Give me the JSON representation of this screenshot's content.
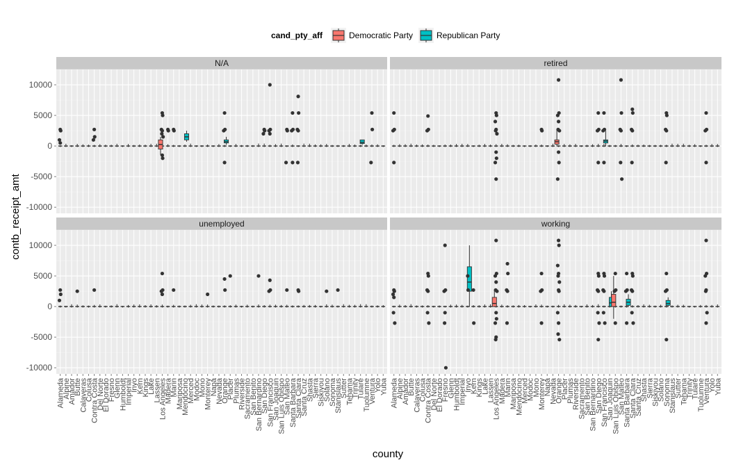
{
  "chart_data": {
    "type": "boxplot",
    "x_label": "county",
    "y_label": "contb_receipt_amt",
    "y_ticks": [
      -10000,
      -5000,
      0,
      5000,
      10000
    ],
    "ylim": [
      -11000,
      12500
    ],
    "legend": {
      "title": "cand_pty_aff",
      "position": "top",
      "entries": [
        {
          "label": "Democratic Party",
          "color": "#F8766D"
        },
        {
          "label": "Republican Party",
          "color": "#00BFC4"
        }
      ]
    },
    "colors": {
      "panel_bg": "#EBEBEB",
      "grid": "#FFFFFF",
      "strip_bg": "#C8C8C8",
      "points": "#333333",
      "dem": "#F8766D",
      "rep": "#00BFC4"
    },
    "panels": [
      {
        "label": "N/A",
        "counties": [
          "Alameda",
          "Alpine",
          "Amador",
          "Butte",
          "Calaveras",
          "Colusa",
          "Contra Costa",
          "Del Norte",
          "El Dorado",
          "Fresno",
          "Glenn",
          "Humboldt",
          "Imperial",
          "Inyo",
          "Kern",
          "Kings",
          "Lake",
          "Lassen",
          "Los Angeles",
          "Madera",
          "Marin",
          "Mariposa",
          "Mendocino",
          "Merced",
          "Modoc",
          "Mono",
          "Monterey",
          "Napa",
          "Nevada",
          "Orange",
          "Placer",
          "Plumas",
          "Riverside",
          "Sacramento",
          "San Benito",
          "San Bernardino",
          "San Diego",
          "San Francisco",
          "San Joaquin",
          "San Luis Obispo",
          "San Mateo",
          "Santa Barbara",
          "Santa Clara",
          "Santa Cruz",
          "Shasta",
          "Sierra",
          "Siskiyou",
          "Solano",
          "Sonoma",
          "Stanislaus",
          "Sutter",
          "Tehama",
          "Trinity",
          "Tulare",
          "Tuolumne",
          "Ventura",
          "Yolo",
          "Yuba"
        ],
        "outliers": [
          {
            "county": "Alameda",
            "values": [
              2700,
              2500,
              1000,
              500
            ]
          },
          {
            "county": "Contra Costa",
            "values": [
              2700,
              1500,
              1000
            ]
          },
          {
            "county": "Los Angeles",
            "values": [
              5400,
              5000,
              2700,
              2500,
              2000,
              1500,
              -1500,
              -2000
            ]
          },
          {
            "county": "Madera",
            "values": [
              2700,
              2500
            ]
          },
          {
            "county": "Marin",
            "values": [
              2700,
              2500
            ]
          },
          {
            "county": "Orange",
            "values": [
              5400,
              2700,
              2500,
              -2700
            ]
          },
          {
            "county": "San Diego",
            "values": [
              2700,
              2500,
              2000
            ]
          },
          {
            "county": "San Francisco",
            "values": [
              10000,
              2700,
              2500,
              2000
            ]
          },
          {
            "county": "San Mateo",
            "values": [
              2700,
              2500,
              -2700
            ]
          },
          {
            "county": "Santa Barbara",
            "values": [
              5400,
              2700,
              2500,
              -2700
            ]
          },
          {
            "county": "Santa Clara",
            "values": [
              8100,
              5400,
              2700,
              2500,
              -2700
            ]
          },
          {
            "county": "Ventura",
            "values": [
              5400,
              2700,
              -2700
            ]
          }
        ],
        "boxes": [
          {
            "county": "Los Angeles",
            "party": "Democratic Party",
            "min": -1500,
            "q1": -500,
            "median": 250,
            "q3": 1000,
            "max": 1500
          },
          {
            "county": "Mendocino",
            "party": "Republican Party",
            "min": 700,
            "q1": 1000,
            "median": 1500,
            "q3": 2000,
            "max": 2500
          },
          {
            "county": "Orange",
            "party": "Republican Party",
            "min": 200,
            "q1": 500,
            "median": 700,
            "q3": 1000,
            "max": 1500
          },
          {
            "county": "Tulare",
            "party": "Republican Party",
            "min": 200,
            "q1": 400,
            "median": 600,
            "q3": 1000,
            "max": 1000
          }
        ]
      },
      {
        "label": "retired",
        "counties": [
          "Alameda",
          "Alpine",
          "Amador",
          "Butte",
          "Calaveras",
          "Colusa",
          "Contra Costa",
          "Del Norte",
          "El Dorado",
          "Fresno",
          "Glenn",
          "Humboldt",
          "Imperial",
          "Inyo",
          "Kern",
          "Kings",
          "Lake",
          "Lassen",
          "Los Angeles",
          "Madera",
          "Marin",
          "Mariposa",
          "Mendocino",
          "Merced",
          "Modoc",
          "Mono",
          "Monterey",
          "Napa",
          "Nevada",
          "Orange",
          "Placer",
          "Plumas",
          "Riverside",
          "Sacramento",
          "San Benito",
          "San Bernardino",
          "San Diego",
          "San Francisco",
          "San Joaquin",
          "San Luis Obispo",
          "San Mateo",
          "Santa Barbara",
          "Santa Clara",
          "Santa Cruz",
          "Shasta",
          "Sierra",
          "Siskiyou",
          "Solano",
          "Sonoma",
          "Stanislaus",
          "Sutter",
          "Tehama",
          "Trinity",
          "Tulare",
          "Tuolumne",
          "Ventura",
          "Yolo",
          "Yuba"
        ],
        "outliers": [
          {
            "county": "Alameda",
            "values": [
              5400,
              2700,
              2500,
              -2700
            ]
          },
          {
            "county": "Contra Costa",
            "values": [
              4900,
              2700,
              2500
            ]
          },
          {
            "county": "Los Angeles",
            "values": [
              5400,
              5000,
              4000,
              2700,
              2500,
              2000,
              -1000,
              -2000,
              -2700,
              -5400
            ]
          },
          {
            "county": "Monterey",
            "values": [
              2700,
              2500
            ]
          },
          {
            "county": "Orange",
            "values": [
              10800,
              5400,
              5000,
              4000,
              2700,
              2500,
              -1000,
              -2700,
              -5400
            ]
          },
          {
            "county": "San Diego",
            "values": [
              5400,
              2700,
              2500,
              -2700
            ]
          },
          {
            "county": "San Francisco",
            "values": [
              5400,
              2700,
              2500,
              -2700
            ]
          },
          {
            "county": "San Mateo",
            "values": [
              10800,
              5400,
              2700,
              2500,
              -2700,
              -5400
            ]
          },
          {
            "county": "Santa Clara",
            "values": [
              6000,
              5400,
              2700,
              2500,
              -2700
            ]
          },
          {
            "county": "Sonoma",
            "values": [
              5400,
              5000,
              2700,
              2500,
              -2700
            ]
          },
          {
            "county": "Ventura",
            "values": [
              5400,
              2700,
              2500,
              -2700
            ]
          }
        ],
        "boxes": [
          {
            "county": "Orange",
            "party": "Democratic Party",
            "min": 0,
            "q1": 300,
            "median": 700,
            "q3": 1000,
            "max": 2700
          },
          {
            "county": "San Francisco",
            "party": "Republican Party",
            "min": 0,
            "q1": 500,
            "median": 800,
            "q3": 1000,
            "max": 2500
          }
        ]
      },
      {
        "label": "unemployed",
        "counties": [
          "Alameda",
          "Alpine",
          "Amador",
          "Butte",
          "Calaveras",
          "Colusa",
          "Contra Costa",
          "Del Norte",
          "El Dorado",
          "Fresno",
          "Glenn",
          "Humboldt",
          "Imperial",
          "Inyo",
          "Kern",
          "Kings",
          "Lake",
          "Lassen",
          "Los Angeles",
          "Madera",
          "Marin",
          "Mariposa",
          "Mendocino",
          "Merced",
          "Modoc",
          "Mono",
          "Monterey",
          "Napa",
          "Nevada",
          "Orange",
          "Placer",
          "Plumas",
          "Riverside",
          "Sacramento",
          "San Benito",
          "San Bernardino",
          "San Diego",
          "San Francisco",
          "San Joaquin",
          "San Luis Obispo",
          "San Mateo",
          "Santa Barbara",
          "Santa Clara",
          "Santa Cruz",
          "Shasta",
          "Sierra",
          "Siskiyou",
          "Solano",
          "Sonoma",
          "Stanislaus",
          "Sutter",
          "Tehama",
          "Trinity",
          "Tulare",
          "Tuolumne",
          "Ventura",
          "Yolo",
          "Yuba"
        ],
        "outliers": [
          {
            "county": "Alameda",
            "values": [
              2700,
              2000,
              1000
            ]
          },
          {
            "county": "Butte",
            "values": [
              2500
            ]
          },
          {
            "county": "Contra Costa",
            "values": [
              2700
            ]
          },
          {
            "county": "Los Angeles",
            "values": [
              5400,
              2700,
              2500,
              2000
            ]
          },
          {
            "county": "Marin",
            "values": [
              2700
            ]
          },
          {
            "county": "Monterey",
            "values": [
              2000
            ]
          },
          {
            "county": "Orange",
            "values": [
              4500,
              2700
            ]
          },
          {
            "county": "Placer",
            "values": [
              5000
            ]
          },
          {
            "county": "San Bernardino",
            "values": [
              5000
            ]
          },
          {
            "county": "San Francisco",
            "values": [
              4300,
              2700,
              2500
            ]
          },
          {
            "county": "San Mateo",
            "values": [
              2700
            ]
          },
          {
            "county": "Santa Clara",
            "values": [
              2700,
              2500
            ]
          },
          {
            "county": "Solano",
            "values": [
              2500
            ]
          },
          {
            "county": "Stanislaus",
            "values": [
              2700
            ]
          }
        ],
        "boxes": []
      },
      {
        "label": "working",
        "counties": [
          "Alameda",
          "Alpine",
          "Amador",
          "Butte",
          "Calaveras",
          "Colusa",
          "Contra Costa",
          "Del Norte",
          "El Dorado",
          "Fresno",
          "Glenn",
          "Humboldt",
          "Imperial",
          "Inyo",
          "Kern",
          "Kings",
          "Lake",
          "Lassen",
          "Los Angeles",
          "Madera",
          "Marin",
          "Mariposa",
          "Mendocino",
          "Merced",
          "Modoc",
          "Mono",
          "Monterey",
          "Napa",
          "Nevada",
          "Orange",
          "Placer",
          "Plumas",
          "Riverside",
          "Sacramento",
          "San Benito",
          "San Bernardino",
          "San Diego",
          "San Francisco",
          "San Joaquin",
          "San Luis Obispo",
          "San Mateo",
          "Santa Barbara",
          "Santa Clara",
          "Santa Cruz",
          "Shasta",
          "Sierra",
          "Siskiyou",
          "Solano",
          "Sonoma",
          "Stanislaus",
          "Sutter",
          "Tehama",
          "Trinity",
          "Tulare",
          "Tuolumne",
          "Ventura",
          "Yolo",
          "Yuba"
        ],
        "outliers": [
          {
            "county": "Alameda",
            "values": [
              2700,
              2500,
              2000,
              1500,
              -1000,
              -2700
            ]
          },
          {
            "county": "Contra Costa",
            "values": [
              5400,
              5000,
              2700,
              2500,
              -1000,
              -2700
            ]
          },
          {
            "county": "Fresno",
            "values": [
              10000,
              2700,
              2500,
              -1000,
              -2700,
              -10000
            ]
          },
          {
            "county": "Inyo",
            "values": [
              5000,
              2700
            ]
          },
          {
            "county": "Kern",
            "values": [
              2700,
              -2700
            ]
          },
          {
            "county": "Los Angeles",
            "values": [
              10800,
              5400,
              5000,
              4000,
              2700,
              2500,
              -1000,
              -2000,
              -2700,
              -5000,
              -5400
            ]
          },
          {
            "county": "Marin",
            "values": [
              7000,
              5400,
              2700,
              2500,
              -2700
            ]
          },
          {
            "county": "Monterey",
            "values": [
              5400,
              2700,
              2500,
              -2700
            ]
          },
          {
            "county": "Orange",
            "values": [
              10800,
              10000,
              6700,
              5400,
              5000,
              4000,
              2700,
              2500,
              -1000,
              -2700,
              -4500,
              -5400
            ]
          },
          {
            "county": "San Diego",
            "values": [
              5400,
              5000,
              2700,
              2500,
              -1000,
              -2700,
              -5400
            ]
          },
          {
            "county": "San Francisco",
            "values": [
              5400,
              5000,
              2700,
              2500,
              -1000,
              -2700
            ]
          },
          {
            "county": "San Luis Obispo",
            "values": [
              5400,
              2700,
              2500,
              -2700
            ]
          },
          {
            "county": "Santa Barbara",
            "values": [
              5400,
              2700,
              2500,
              -2700
            ]
          },
          {
            "county": "Santa Clara",
            "values": [
              5400,
              5000,
              2700,
              2500,
              -1000,
              -2700
            ]
          },
          {
            "county": "Sonoma",
            "values": [
              5400,
              2700,
              2500,
              -5400
            ]
          },
          {
            "county": "Ventura",
            "values": [
              10800,
              5400,
              5000,
              2700,
              2500,
              -1000,
              -2700
            ]
          }
        ],
        "boxes": [
          {
            "county": "Inyo",
            "party": "Republican Party",
            "min": 0,
            "q1": 2500,
            "median": 4000,
            "q3": 6500,
            "max": 10000
          },
          {
            "county": "Los Angeles",
            "party": "Democratic Party",
            "min": 0,
            "q1": 0,
            "median": 500,
            "q3": 1500,
            "max": 2700
          },
          {
            "county": "San Joaquin",
            "party": "Republican Party",
            "min": 0,
            "q1": 0,
            "median": 600,
            "q3": 1500,
            "max": 2500
          },
          {
            "county": "San Luis Obispo",
            "party": "Democratic Party",
            "min": -2000,
            "q1": 0,
            "median": 700,
            "q3": 2000,
            "max": 5000
          },
          {
            "county": "Santa Barbara",
            "party": "Republican Party",
            "min": 0,
            "q1": 200,
            "median": 700,
            "q3": 1200,
            "max": 2000
          },
          {
            "county": "Sonoma",
            "party": "Republican Party",
            "min": 0,
            "q1": 200,
            "median": 500,
            "q3": 1000,
            "max": 1500
          }
        ]
      }
    ]
  }
}
